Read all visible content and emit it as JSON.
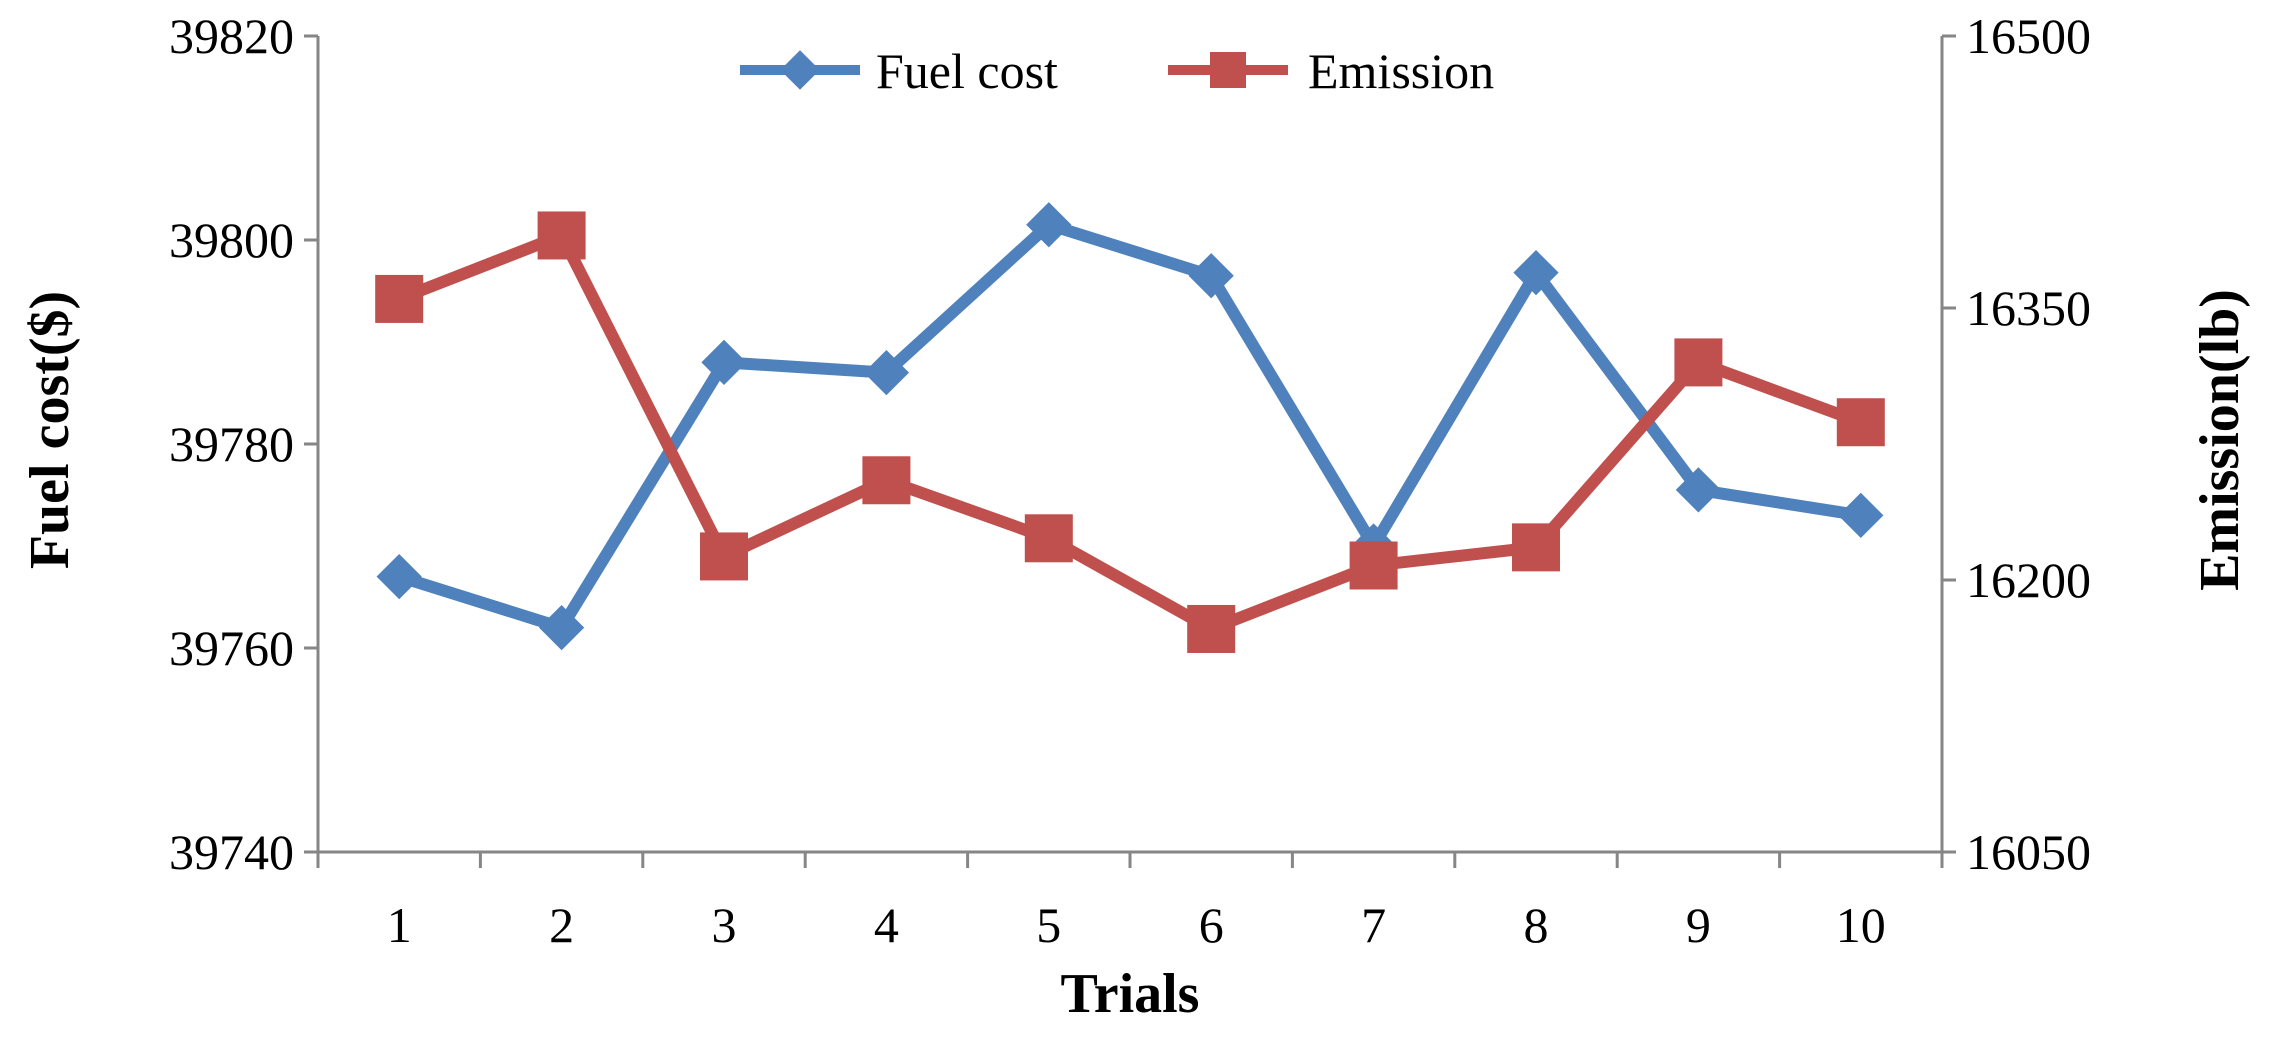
{
  "chart_data": {
    "type": "line",
    "title": "",
    "xlabel": "Trials",
    "ylabel": "Fuel cost($)",
    "y2label": "Emission(lb)",
    "categories": [
      "1",
      "2",
      "3",
      "4",
      "5",
      "6",
      "7",
      "8",
      "9",
      "10"
    ],
    "ylim": [
      39740,
      39820
    ],
    "y2lim": [
      16050,
      16500
    ],
    "yticks": [
      "39740",
      "39760",
      "39780",
      "39800",
      "39820"
    ],
    "y2ticks": [
      "16050",
      "16200",
      "16350",
      "16500"
    ],
    "legend_position": "top-center",
    "grid": false,
    "series": [
      {
        "name": "Fuel cost",
        "axis": "left",
        "marker": "diamond",
        "color": "#4F81BD",
        "values": [
          39767,
          39762,
          39788,
          39787,
          39801.5,
          39796.5,
          39770,
          39796.8,
          39775.5,
          39773
        ]
      },
      {
        "name": "Emission",
        "axis": "right",
        "marker": "square",
        "color": "#C0504D",
        "values": [
          16355,
          16390,
          16213,
          16255,
          16223,
          16173,
          16208,
          16218,
          16320,
          16287
        ]
      }
    ]
  }
}
